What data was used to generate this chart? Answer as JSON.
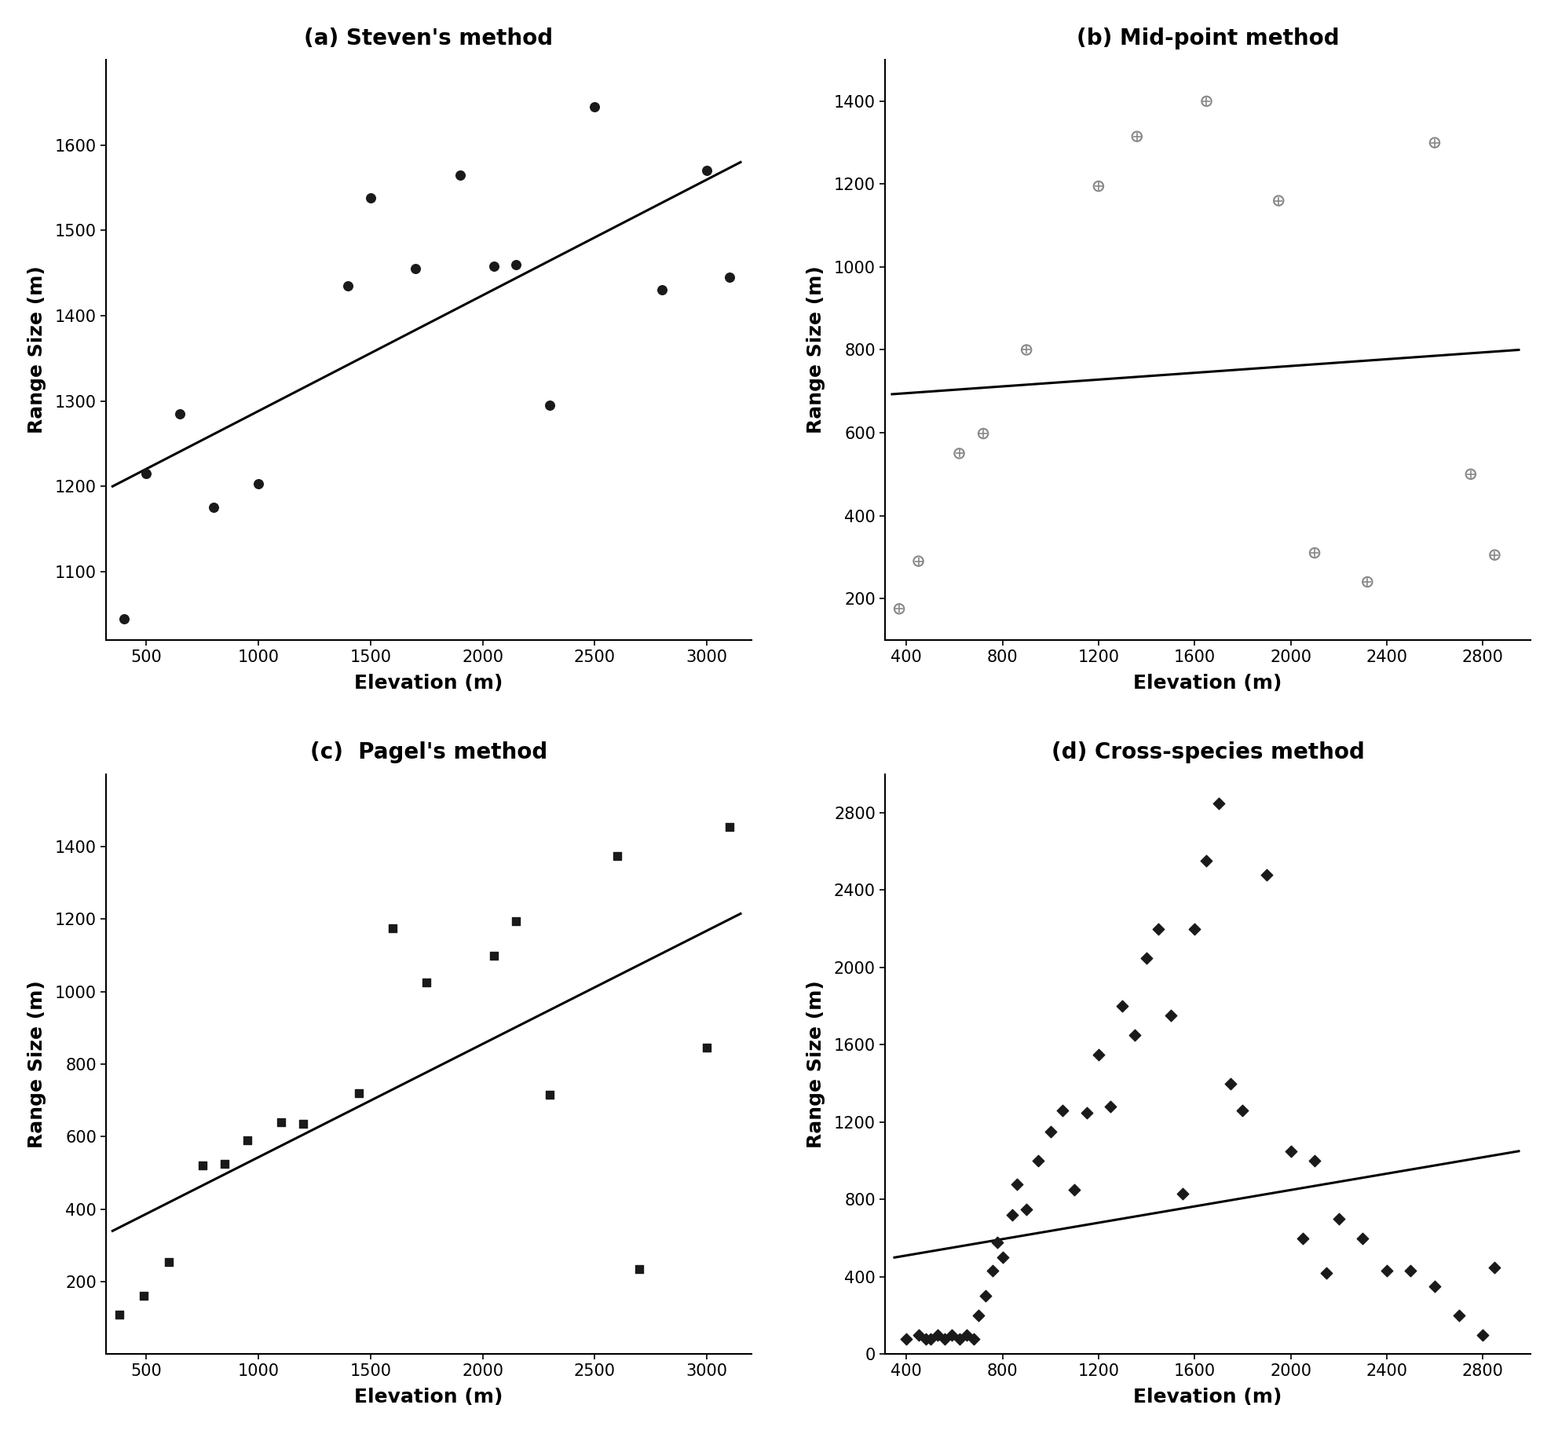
{
  "panel_a": {
    "title": "(a) Steven's method",
    "xlabel": "Elevation (m)",
    "ylabel": "Range Size (m)",
    "scatter_x": [
      400,
      500,
      650,
      800,
      1000,
      1400,
      1500,
      1700,
      1900,
      2050,
      2150,
      2300,
      2500,
      2800,
      3000,
      3100
    ],
    "scatter_y": [
      1045,
      1215,
      1285,
      1175,
      1203,
      1435,
      1538,
      1455,
      1565,
      1458,
      1460,
      1295,
      1645,
      1430,
      1570,
      1445
    ],
    "line_x": [
      350,
      3150
    ],
    "line_y": [
      1200,
      1580
    ],
    "xlim": [
      320,
      3200
    ],
    "ylim": [
      1020,
      1700
    ],
    "yticks": [
      1100,
      1200,
      1300,
      1400,
      1500,
      1600
    ],
    "xticks": [
      500,
      1000,
      1500,
      2000,
      2500,
      3000
    ],
    "marker": "o",
    "marker_color": "#1a1a1a",
    "marker_size": 70
  },
  "panel_b": {
    "title": "(b) Mid-point method",
    "xlabel": "Elevation (m)",
    "ylabel": "Range Size (m)",
    "scatter_x": [
      370,
      450,
      620,
      720,
      900,
      1200,
      1360,
      1650,
      1950,
      2100,
      2320,
      2600,
      2750,
      2850
    ],
    "scatter_y": [
      175,
      290,
      550,
      598,
      800,
      1195,
      1315,
      1400,
      1160,
      310,
      240,
      1300,
      500,
      305
    ],
    "line_x": [
      340,
      2950
    ],
    "line_y": [
      693,
      800
    ],
    "xlim": [
      310,
      3000
    ],
    "ylim": [
      100,
      1500
    ],
    "yticks": [
      200,
      400,
      600,
      800,
      1000,
      1200,
      1400
    ],
    "xticks": [
      400,
      800,
      1200,
      1600,
      2000,
      2400,
      2800
    ],
    "marker": "o",
    "marker_color": "#888888",
    "marker_size": 80
  },
  "panel_c": {
    "title": "(c)  Pagel's method",
    "xlabel": "Elevation (m)",
    "ylabel": "Range Size (m)",
    "scatter_x": [
      380,
      490,
      600,
      750,
      850,
      950,
      1100,
      1200,
      1450,
      1600,
      1750,
      2050,
      2150,
      2300,
      2600,
      2700,
      3000,
      3100
    ],
    "scatter_y": [
      110,
      160,
      255,
      520,
      525,
      590,
      640,
      635,
      720,
      1175,
      1025,
      1100,
      1195,
      715,
      1375,
      235,
      845,
      1455
    ],
    "line_x": [
      350,
      3150
    ],
    "line_y": [
      340,
      1215
    ],
    "xlim": [
      320,
      3200
    ],
    "ylim": [
      0,
      1600
    ],
    "yticks": [
      200,
      400,
      600,
      800,
      1000,
      1200,
      1400
    ],
    "xticks": [
      500,
      1000,
      1500,
      2000,
      2500,
      3000
    ],
    "marker": "s",
    "marker_color": "#1a1a1a",
    "marker_size": 60
  },
  "panel_d": {
    "title": "(d) Cross-species method",
    "xlabel": "Elevation (m)",
    "ylabel": "Range Size (m)",
    "scatter_x": [
      400,
      450,
      480,
      500,
      530,
      560,
      590,
      620,
      650,
      680,
      700,
      730,
      760,
      780,
      800,
      840,
      860,
      900,
      950,
      1000,
      1050,
      1100,
      1150,
      1200,
      1250,
      1300,
      1350,
      1400,
      1450,
      1500,
      1550,
      1600,
      1650,
      1700,
      1750,
      1800,
      1900,
      2000,
      2050,
      2100,
      2150,
      2200,
      2300,
      2400,
      2500,
      2600,
      2700,
      2800,
      2850
    ],
    "scatter_y": [
      80,
      100,
      80,
      80,
      100,
      80,
      100,
      80,
      100,
      80,
      200,
      300,
      430,
      580,
      500,
      720,
      880,
      750,
      1000,
      1150,
      1260,
      850,
      1250,
      1550,
      1280,
      1800,
      1650,
      2050,
      2200,
      1750,
      830,
      2200,
      2550,
      2850,
      1400,
      1260,
      2480,
      1050,
      600,
      1000,
      420,
      700,
      600,
      430,
      430,
      350,
      200,
      100,
      450
    ],
    "line_x": [
      350,
      2950
    ],
    "line_y": [
      500,
      1050
    ],
    "xlim": [
      310,
      3000
    ],
    "ylim": [
      0,
      3000
    ],
    "yticks": [
      0,
      400,
      800,
      1200,
      1600,
      2000,
      2400,
      2800
    ],
    "xticks": [
      400,
      800,
      1200,
      1600,
      2000,
      2400,
      2800
    ],
    "marker": "D",
    "marker_color": "#1a1a1a",
    "marker_size": 55
  }
}
